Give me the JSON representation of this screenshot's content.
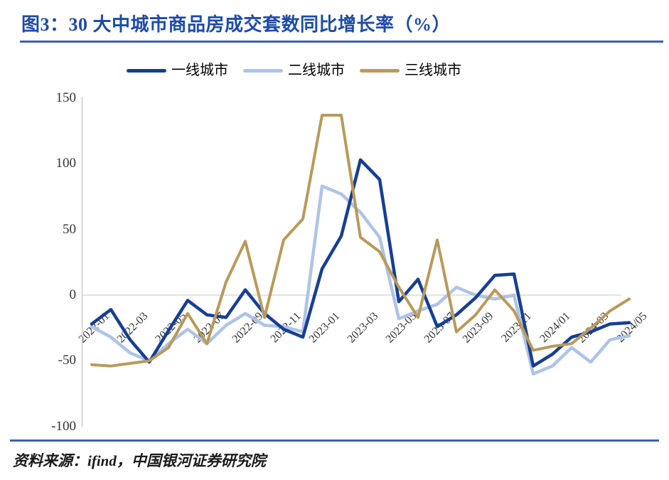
{
  "figure": {
    "title": "图3：30 大中城市商品房成交套数同比增长率（%）",
    "source": "资料来源：ifind，中国银河证券研究院"
  },
  "colors": {
    "title_blue": "#1E4BA5",
    "rule_blue": "#3D5FAE",
    "tier1_navy": "#173E94",
    "tier2_lightblue": "#AEC4E6",
    "tier3_tan": "#B89A5A",
    "axis_gray": "#CFCFCF",
    "zeroline_gray": "#D9D9D9",
    "tick_text": "#333333"
  },
  "chart_data": {
    "type": "line",
    "title": "30大中城市商品房成交套数同比增长率（%）",
    "xlabel": "",
    "ylabel": "",
    "ylim": [
      -100,
      150
    ],
    "yticks": [
      150,
      100,
      50,
      0,
      -50,
      -100
    ],
    "grid": "zero-line-only",
    "legend_position": "top-center",
    "x": [
      "2022-01",
      "2022-02",
      "2022-03",
      "2022-04",
      "2022-05",
      "2022-06",
      "2022-07",
      "2022-08",
      "2022-09",
      "2022-10",
      "2022-11",
      "2022-12",
      "2023-01",
      "2023-02",
      "2023-03",
      "2023-04",
      "2023-05",
      "2023-06",
      "2023-07",
      "2023-08",
      "2023-09",
      "2023-10",
      "2023-11",
      "2023-12",
      "2024-01",
      "2024-02",
      "2024-03",
      "2024-04",
      "2024-05"
    ],
    "x_tick_labels": [
      "2022-01",
      "2022-03",
      "2022-05",
      "2022-07",
      "2022-09",
      "2022-11",
      "2023-01",
      "2023-03",
      "2023-05",
      "2023-07",
      "2023-09",
      "2023/11",
      "2024/01",
      "2024-03",
      "2024/05"
    ],
    "series": [
      {
        "name": "一线城市",
        "color": "#173E94",
        "values": [
          -22,
          -11,
          -34,
          -51,
          -27,
          -4,
          -15,
          -17,
          4,
          -14,
          -26,
          -32,
          20,
          45,
          103,
          88,
          -5,
          12,
          -24,
          -15,
          -2,
          15,
          16,
          -54,
          -45,
          -32,
          -28,
          -22,
          -21
        ]
      },
      {
        "name": "二线城市",
        "color": "#AEC4E6",
        "values": [
          -24,
          -32,
          -44,
          -50,
          -37,
          -26,
          -37,
          -23,
          -14,
          -23,
          -24,
          -28,
          83,
          77,
          63,
          44,
          -18,
          -12,
          -7,
          6,
          0,
          -3,
          0,
          -60,
          -54,
          -40,
          -51,
          -34,
          -31
        ]
      },
      {
        "name": "三线城市",
        "color": "#B89A5A",
        "values": [
          -53,
          -54,
          -52,
          -50,
          -40,
          -14,
          -37,
          10,
          41,
          -17,
          42,
          58,
          137,
          137,
          44,
          33,
          6,
          -17,
          42,
          -28,
          -15,
          4,
          -12,
          -42,
          -39,
          -37,
          -25,
          -12,
          -3
        ]
      }
    ]
  }
}
